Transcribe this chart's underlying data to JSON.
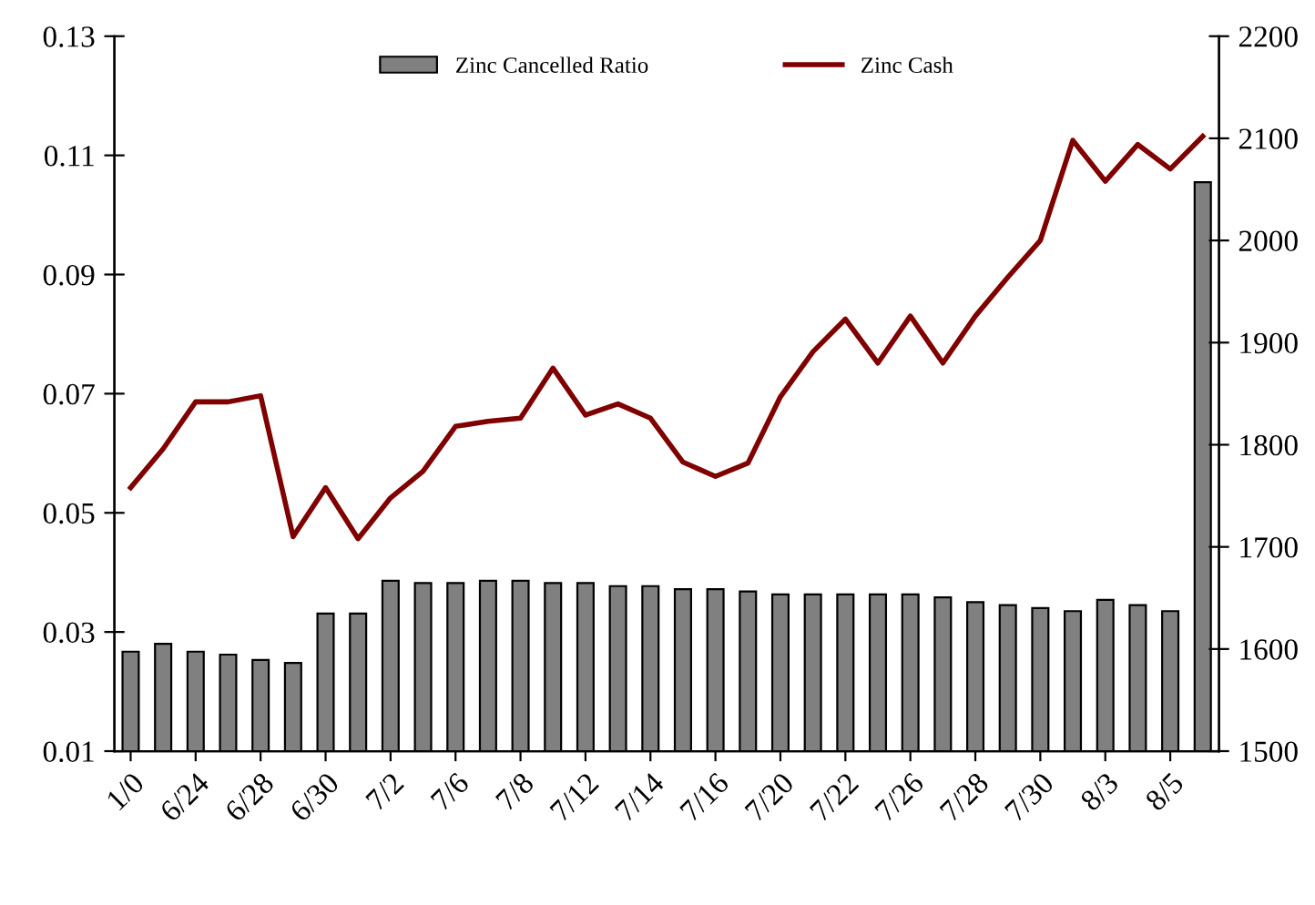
{
  "chart_data": {
    "type": "bar",
    "categories": [
      "1/0",
      null,
      "6/24",
      null,
      "6/28",
      null,
      "6/30",
      null,
      "7/2",
      null,
      "7/6",
      null,
      "7/8",
      null,
      "7/12",
      null,
      "7/14",
      null,
      "7/16",
      null,
      "7/20",
      null,
      "7/22",
      null,
      "7/26",
      null,
      "7/28",
      null,
      "7/30",
      null,
      "8/3",
      null,
      "8/5",
      null
    ],
    "series": [
      {
        "name": "Zinc Cancelled Ratio",
        "color": "#808080",
        "values": [
          0.0267,
          0.028,
          0.0267,
          0.0262,
          0.0253,
          0.0248,
          0.0331,
          0.0331,
          0.0386,
          0.0382,
          0.0382,
          0.0386,
          0.0386,
          0.0382,
          0.0382,
          0.0377,
          0.0377,
          0.0372,
          0.0372,
          0.0368,
          0.0363,
          0.0363,
          0.0363,
          0.0363,
          0.0363,
          0.0358,
          0.035,
          0.0345,
          0.034,
          0.0335,
          0.0354,
          0.0345,
          0.0335,
          0.1055
        ]
      },
      {
        "name": "Zinc Cash",
        "type": "line",
        "axis": "y2",
        "color": "#800000",
        "values": [
          1758,
          1796,
          1842,
          1842,
          1848,
          1710,
          1758,
          1708,
          1748,
          1774,
          1818,
          1823,
          1826,
          1875,
          1829,
          1840,
          1826,
          1783,
          1769,
          1782,
          1847,
          1891,
          1923,
          1880,
          1926,
          1880,
          1926,
          1964,
          2000,
          2098,
          2058,
          2094,
          2070,
          2102
        ]
      }
    ],
    "ylim": [
      0.01,
      0.13
    ],
    "yticks": [
      0.01,
      0.03,
      0.05,
      0.07,
      0.09,
      0.11,
      0.13
    ],
    "y2lim": [
      1500,
      2200
    ],
    "y2ticks": [
      1500,
      1600,
      1700,
      1800,
      1900,
      2000,
      2100,
      2200
    ],
    "legend": "top",
    "grid": false
  }
}
